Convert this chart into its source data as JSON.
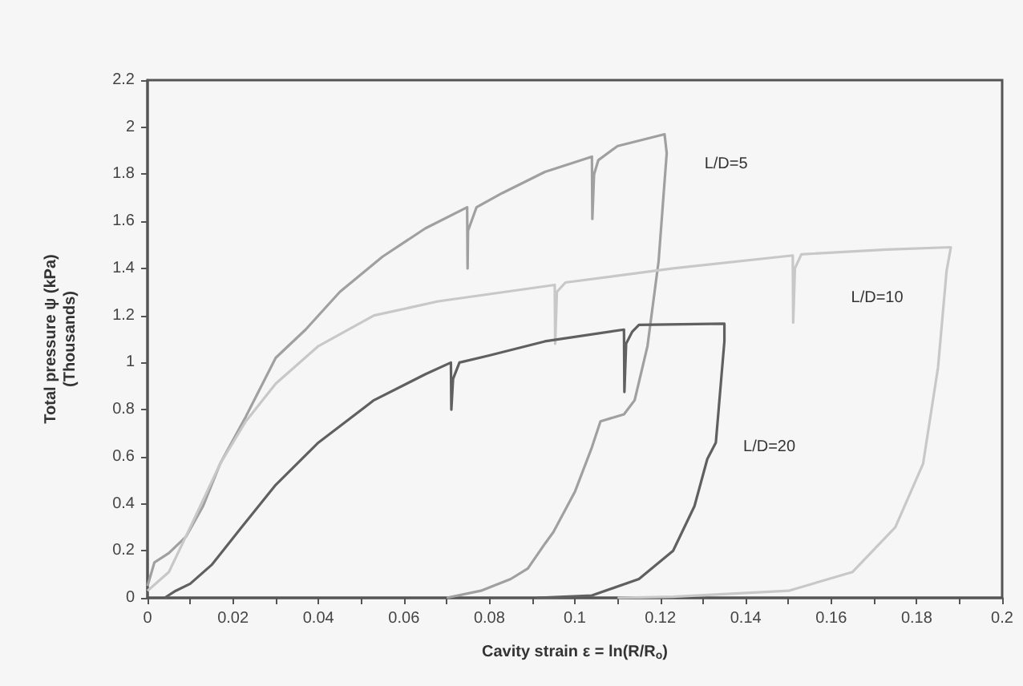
{
  "chart_data": {
    "type": "line",
    "xlabel": "Cavity strain ε = ln(R/R$_{o}$)",
    "ylabel": "Total pressure ψ (kPa)\n(Thousands)",
    "marker": "none",
    "grid": false,
    "legend": false,
    "xlim": [
      0,
      0.2
    ],
    "xticks": [
      0,
      {
        "value": 0.01,
        "label": null
      },
      0.02,
      {
        "value": 0.03,
        "label": null
      },
      0.04,
      {
        "value": 0.05,
        "label": null
      },
      0.06,
      {
        "value": 0.07,
        "label": null
      },
      0.08,
      {
        "value": 0.09,
        "label": null
      },
      0.1,
      {
        "value": 0.11,
        "label": null
      },
      0.12,
      {
        "value": 0.13,
        "label": null
      },
      0.14,
      {
        "value": 0.15,
        "label": null
      },
      0.16,
      {
        "value": 0.17,
        "label": null
      },
      0.18,
      {
        "value": 0.19,
        "label": null
      },
      0.2
    ],
    "ylim": [
      0,
      2.2
    ],
    "yticks": [
      0,
      0.2,
      0.4,
      0.6,
      0.8,
      1,
      1.2,
      1.4,
      1.6,
      1.8,
      2,
      2.2
    ],
    "series": [
      {
        "name": "L/D=5",
        "color": "#a0a0a0",
        "x": [
          0,
          0.0016,
          0.005,
          0.009,
          0.013,
          0.017,
          0.023,
          0.03,
          0.037,
          0.045,
          0.055,
          0.065,
          0.0748,
          0.0749,
          0.075,
          0.077,
          0.083,
          0.093,
          0.104,
          0.1041,
          0.1045,
          0.1055,
          0.11,
          0.121,
          0.1215,
          0.1196,
          0.117,
          0.114,
          0.1115,
          0.106,
          0.104,
          0.1,
          0.095,
          0.093,
          0.089,
          0.085,
          0.078,
          0.07
        ],
        "values": [
          0.05,
          0.15,
          0.19,
          0.26,
          0.39,
          0.57,
          0.77,
          1.02,
          1.14,
          1.3,
          1.45,
          1.57,
          1.66,
          1.4,
          1.56,
          1.66,
          1.72,
          1.81,
          1.875,
          1.61,
          1.8,
          1.86,
          1.92,
          1.97,
          1.89,
          1.43,
          1.07,
          0.84,
          0.78,
          0.75,
          0.64,
          0.45,
          0.28,
          0.23,
          0.125,
          0.08,
          0.03,
          0
        ]
      },
      {
        "name": "L/D=10",
        "color": "#c8c8c8",
        "x": [
          0,
          0.005,
          0.01,
          0.017,
          0.023,
          0.03,
          0.04,
          0.053,
          0.068,
          0.0953,
          0.0954,
          0.0958,
          0.0978,
          0.123,
          0.151,
          0.1511,
          0.1515,
          0.153,
          0.173,
          0.188,
          0.187,
          0.185,
          0.1815,
          0.175,
          0.165,
          0.15,
          0.123,
          0.11
        ],
        "values": [
          0.03,
          0.11,
          0.3,
          0.57,
          0.75,
          0.91,
          1.07,
          1.2,
          1.26,
          1.33,
          1.08,
          1.3,
          1.34,
          1.4,
          1.455,
          1.17,
          1.4,
          1.46,
          1.48,
          1.49,
          1.39,
          0.98,
          0.57,
          0.3,
          0.11,
          0.03,
          0.005,
          0
        ]
      },
      {
        "name": "L/D=20",
        "color": "#606060",
        "x": [
          0.004,
          0.0066,
          0.01,
          0.015,
          0.022,
          0.03,
          0.04,
          0.053,
          0.065,
          0.071,
          0.0711,
          0.0715,
          0.073,
          0.08,
          0.093,
          0.1115,
          0.1116,
          0.112,
          0.1134,
          0.115,
          0.135,
          0.135,
          0.133,
          0.131,
          0.128,
          0.123,
          0.115,
          0.104,
          0.091
        ],
        "values": [
          0,
          0.03,
          0.06,
          0.14,
          0.3,
          0.48,
          0.66,
          0.84,
          0.95,
          1,
          0.8,
          0.93,
          1,
          1.03,
          1.09,
          1.14,
          0.875,
          1.08,
          1.13,
          1.16,
          1.165,
          1.09,
          0.66,
          0.59,
          0.39,
          0.2,
          0.08,
          0.01,
          0
        ]
      }
    ]
  }
}
